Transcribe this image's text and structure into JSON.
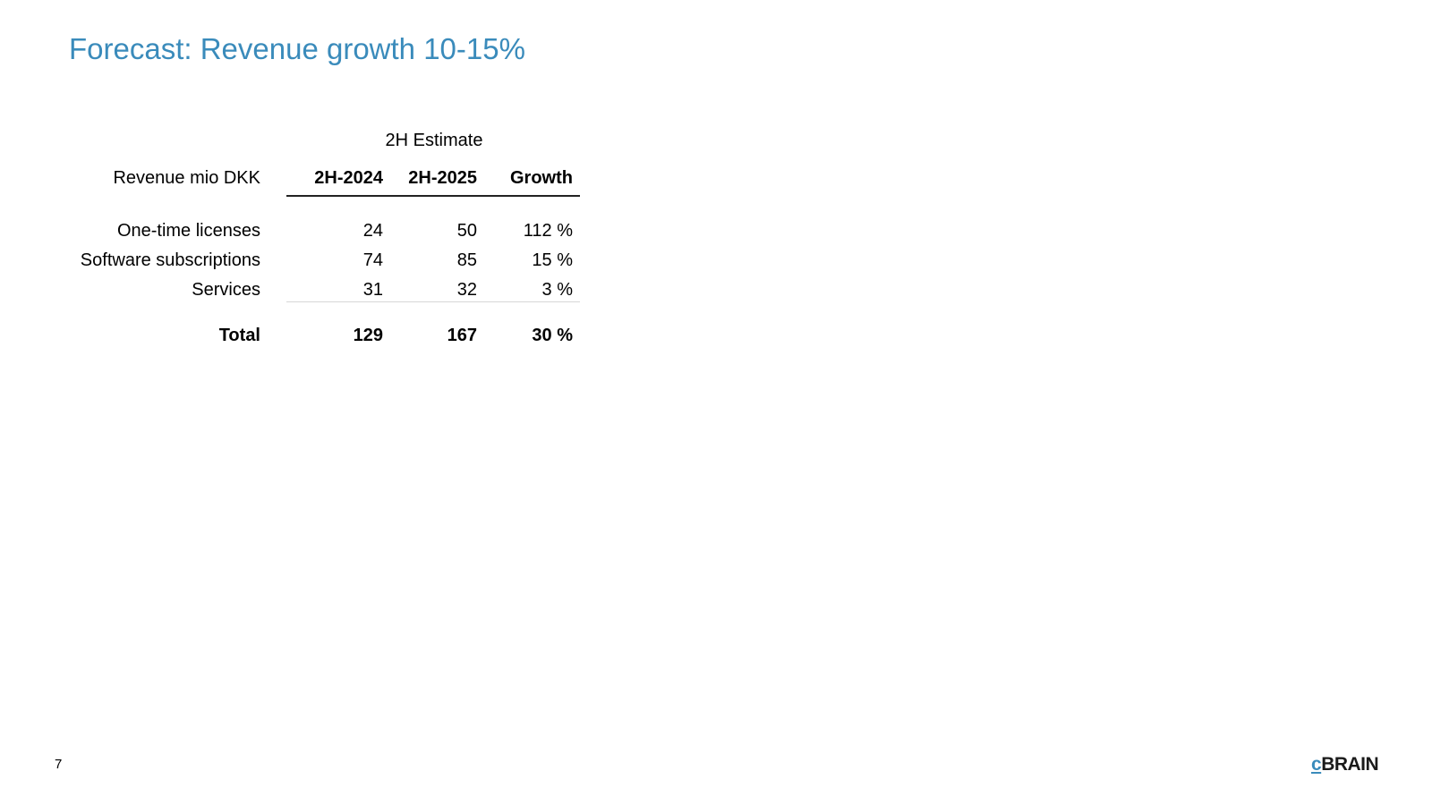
{
  "slide": {
    "title": "Forecast: Revenue growth 10-15%",
    "page_number": "7",
    "colors": {
      "title": "#3a8bbb",
      "logo_accent": "#3a8bbb"
    }
  },
  "logo": {
    "text": "cBRAIN"
  },
  "table": {
    "super_header": "2H Estimate",
    "header": {
      "label": "Revenue mio DKK",
      "col1": "2H-2024",
      "col2": "2H-2025",
      "col3": "Growth"
    },
    "rows": [
      {
        "label": "One-time licenses",
        "col1": "24",
        "col2": "50",
        "col3": "112 %"
      },
      {
        "label": "Software subscriptions",
        "col1": "74",
        "col2": "85",
        "col3": "15 %"
      },
      {
        "label": "Services",
        "col1": "31",
        "col2": "32",
        "col3": "3 %"
      }
    ],
    "total": {
      "label": "Total",
      "col1": "129",
      "col2": "167",
      "col3": "30 %"
    }
  }
}
